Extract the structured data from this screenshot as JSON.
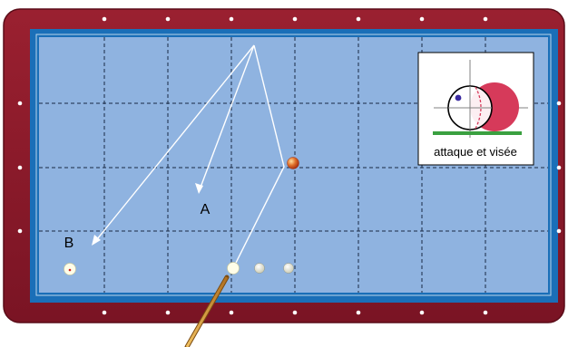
{
  "diagram": {
    "labels": {
      "a": "A",
      "b": "B"
    },
    "inset": {
      "caption": "attaque et visée"
    }
  },
  "colors": {
    "rail": "#8a1a2a",
    "cushion": "#1a6fb8",
    "cloth": "#8fb3e0",
    "grid": "#1a2a44",
    "trajectory": "#ffffff",
    "red_ball": "#e0502a",
    "inset_red": "#d63a5a",
    "inset_green": "#3aa040",
    "inset_dot": "#3a2aa0",
    "cue_stick": "#e0a030"
  }
}
